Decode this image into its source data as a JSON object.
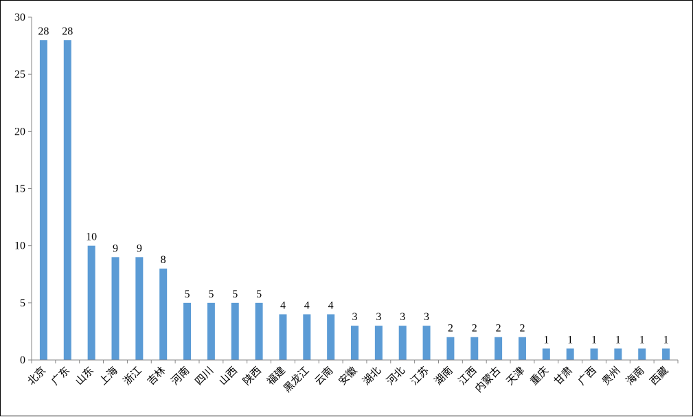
{
  "chart_data": {
    "type": "bar",
    "title": "",
    "xlabel": "",
    "ylabel": "",
    "ylim": [
      0,
      30
    ],
    "yticks": [
      0,
      5,
      10,
      15,
      20,
      25,
      30
    ],
    "categories": [
      "北京",
      "广东",
      "山东",
      "上海",
      "浙江",
      "吉林",
      "河南",
      "四川",
      "山西",
      "陕西",
      "福建",
      "黑龙江",
      "云南",
      "安徽",
      "湖北",
      "河北",
      "江苏",
      "湖南",
      "江西",
      "内蒙古",
      "天津",
      "重庆",
      "甘肃",
      "广西",
      "贵州",
      "海南",
      "西藏"
    ],
    "values": [
      28,
      28,
      10,
      9,
      9,
      8,
      5,
      5,
      5,
      5,
      4,
      4,
      4,
      3,
      3,
      3,
      3,
      2,
      2,
      2,
      2,
      1,
      1,
      1,
      1,
      1,
      1
    ],
    "bar_color": "#5B9BD5",
    "axis_color": "#868686",
    "grid": false,
    "legend": "none",
    "data_labels": true
  }
}
